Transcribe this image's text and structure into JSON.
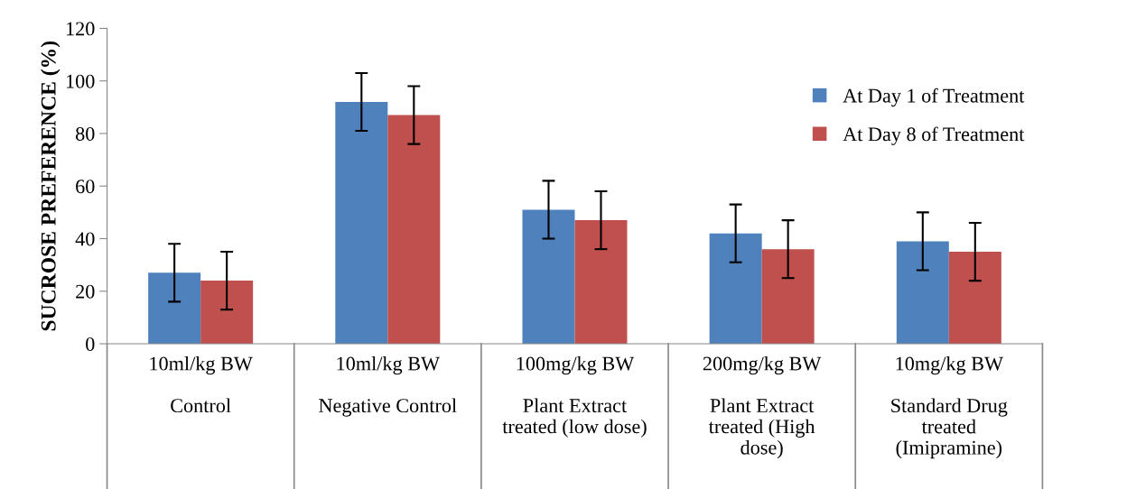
{
  "chart_data": {
    "type": "bar",
    "ylabel": "SUCROSE PREFERENCE (%)",
    "categories": [
      "10ml/kg BW\n\nControl",
      "10ml/kg BW\n\nNegative Control",
      "100mg/kg BW\n\nPlant Extract\ntreated (low dose)",
      "200mg/kg BW\n\nPlant Extract\ntreated (High\ndose)",
      "10mg/kg BW\n\nStandard Drug\ntreated\n(Imipramine)"
    ],
    "series": [
      {
        "name": "At Day 1 of Treatment",
        "color": "#4f81bd",
        "values": [
          27,
          92,
          51,
          42,
          39
        ],
        "errors": [
          11,
          11,
          11,
          11,
          11
        ]
      },
      {
        "name": "At Day 8 of Treatment",
        "color": "#c0504d",
        "values": [
          24,
          87,
          47,
          36,
          35
        ],
        "errors": [
          11,
          11,
          11,
          11,
          11
        ]
      }
    ],
    "ylim": [
      0,
      120
    ],
    "yticks": [
      0,
      20,
      40,
      60,
      80,
      100,
      120
    ],
    "grid": false,
    "legend": "right"
  }
}
